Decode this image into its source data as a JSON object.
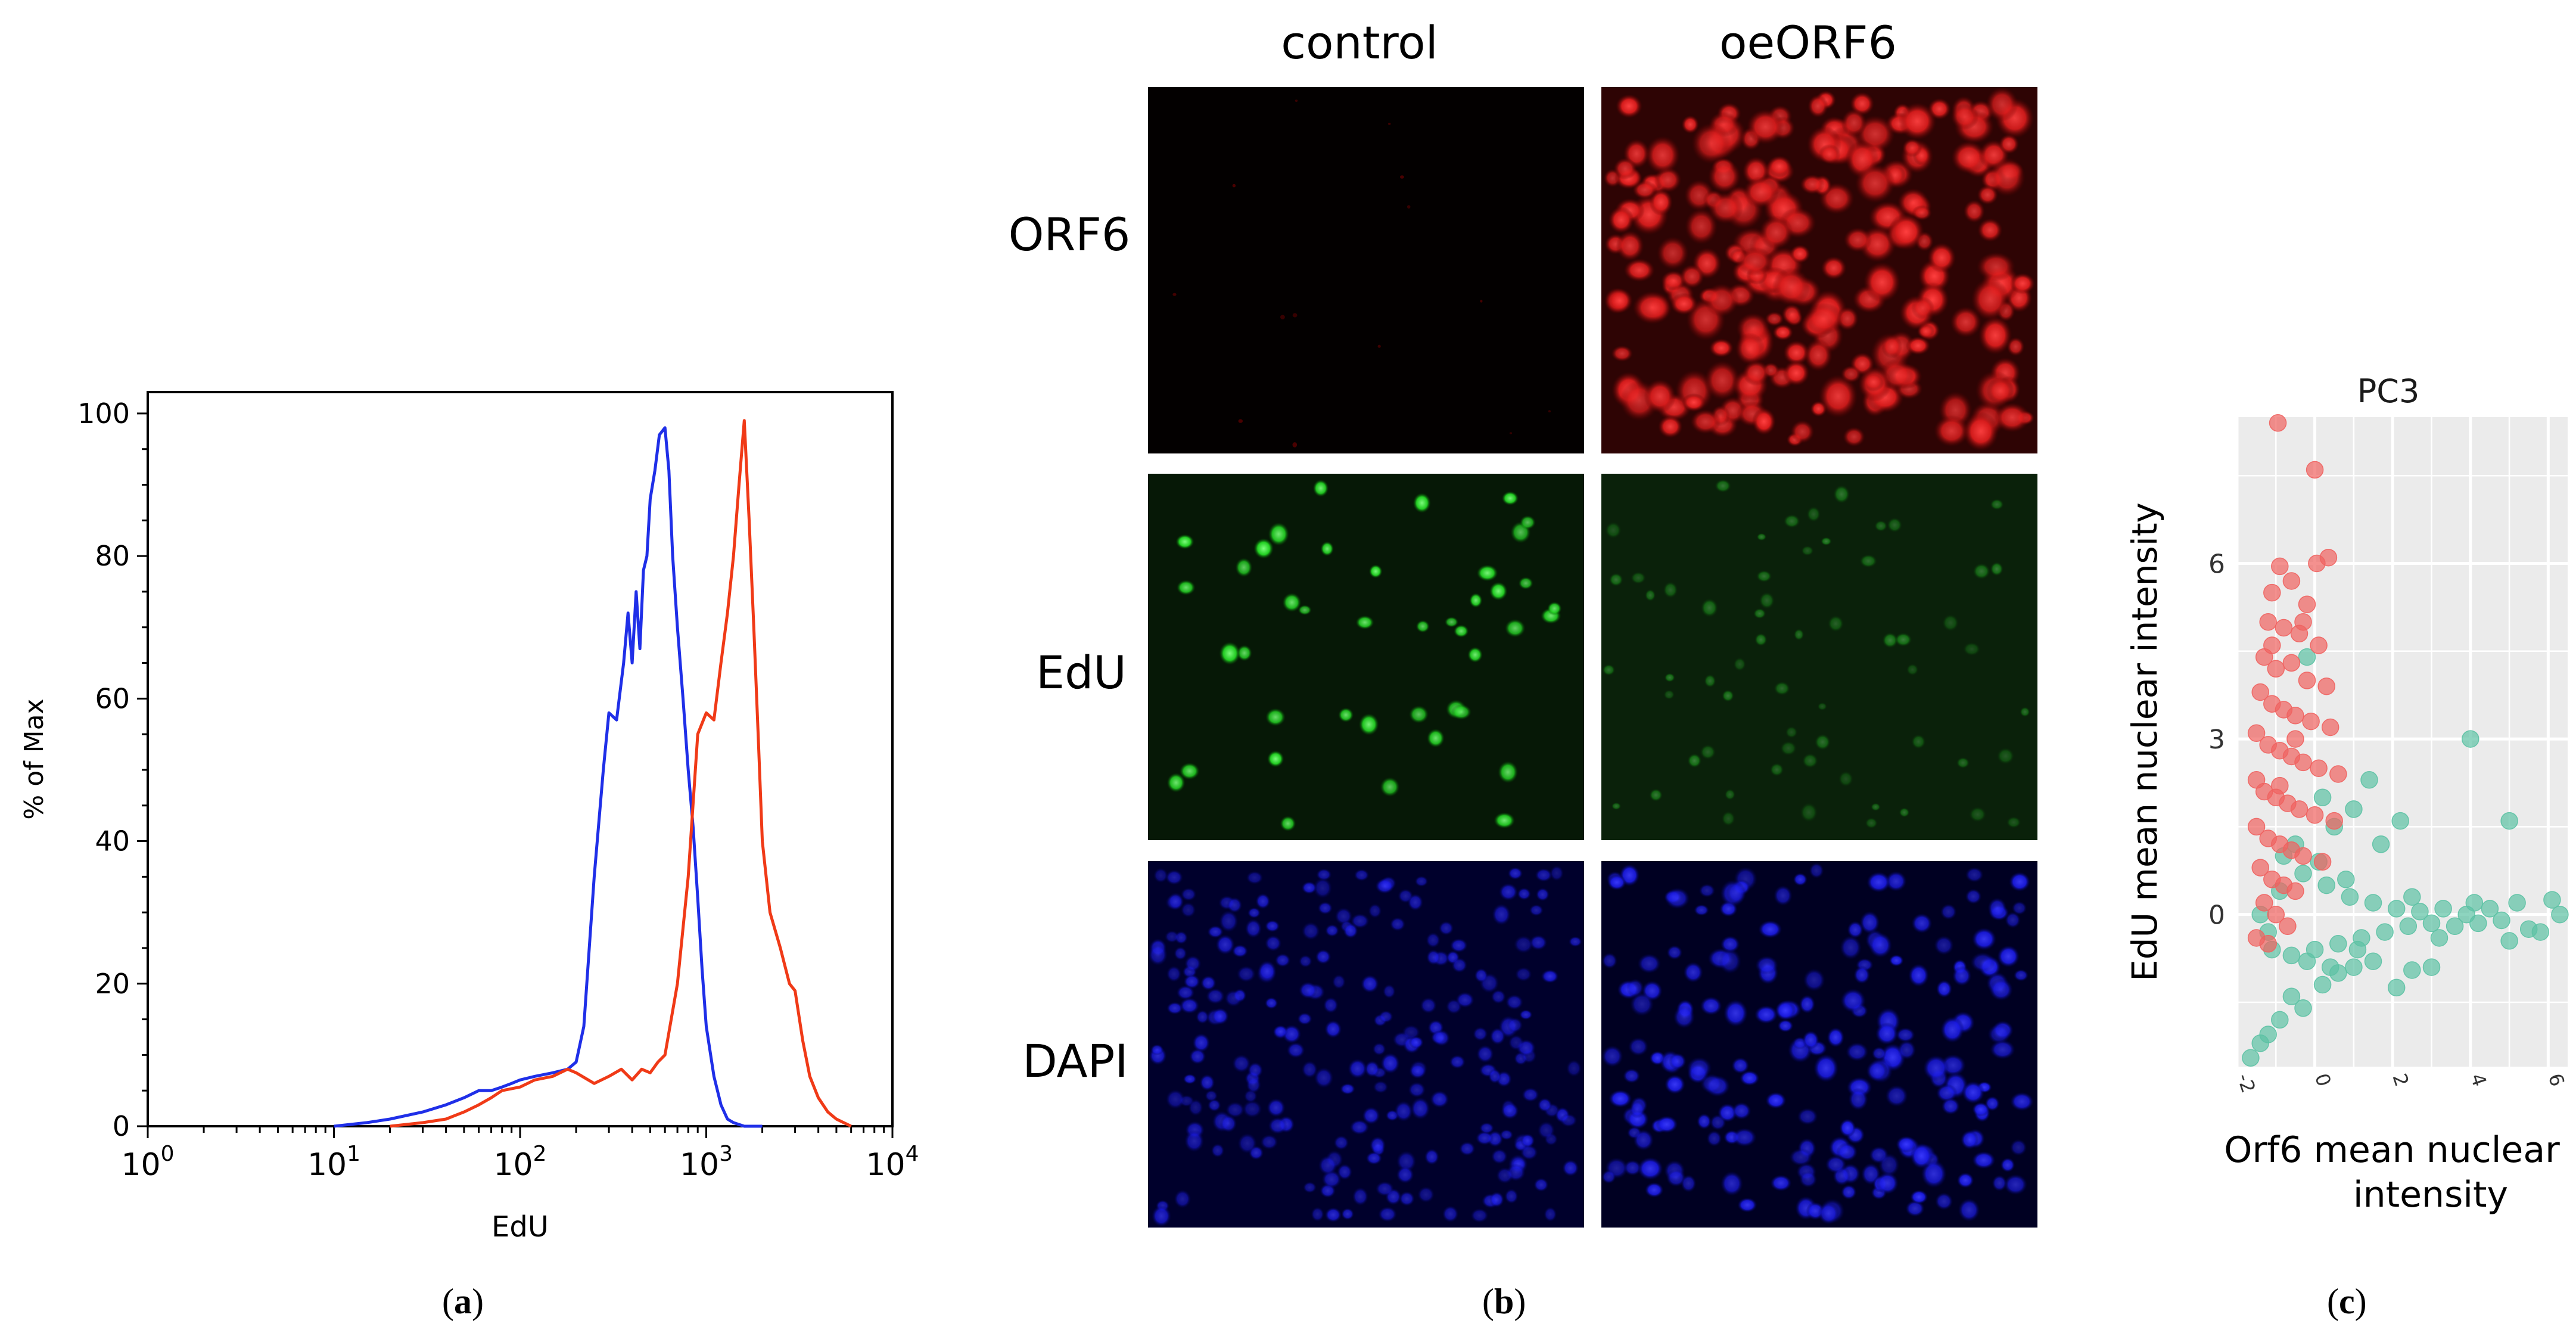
{
  "panel_a": {
    "label_letter": "a",
    "ylabel": "% of Max",
    "xlabel": "EdU",
    "y_ticks": [
      "0",
      "20",
      "40",
      "60",
      "80",
      "100"
    ],
    "x_ticks": [
      {
        "base": "10",
        "exp": "0"
      },
      {
        "base": "10",
        "exp": "1"
      },
      {
        "base": "10",
        "exp": "2"
      },
      {
        "base": "10",
        "exp": "3"
      },
      {
        "base": "10",
        "exp": "4"
      }
    ],
    "colors": {
      "series1": "#1f2fe8",
      "series2": "#f03a17"
    }
  },
  "panel_b": {
    "label_letter": "b",
    "columns": [
      "control",
      "oeORF6"
    ],
    "rows": [
      "ORF6",
      "EdU",
      "DAPI"
    ]
  },
  "panel_c": {
    "label_letter": "c",
    "title": "PC3",
    "xlabel_line1": "Orf6 mean nuclear",
    "xlabel_line2": "intensity",
    "ylabel": "EdU mean nuclear intensity",
    "y_ticks": [
      "0",
      "3",
      "6"
    ],
    "x_ticks": [
      "-2",
      "0",
      "2",
      "4",
      "6"
    ],
    "colors": {
      "groupA": "#f0625f",
      "groupB": "#5cc2a4"
    }
  },
  "chart_data": [
    {
      "type": "line",
      "panel": "a",
      "title": "",
      "xlabel": "EdU",
      "ylabel": "% of Max",
      "xscale": "log",
      "xlim": [
        1,
        10000
      ],
      "ylim": [
        0,
        103
      ],
      "grid": false,
      "series": [
        {
          "color": "#1f2fe8",
          "x": [
            10,
            15,
            20,
            30,
            40,
            50,
            60,
            70,
            80,
            90,
            100,
            120,
            150,
            180,
            200,
            220,
            250,
            280,
            300,
            330,
            360,
            380,
            400,
            420,
            440,
            460,
            480,
            500,
            530,
            560,
            600,
            630,
            660,
            700,
            750,
            800,
            850,
            900,
            950,
            1000,
            1100,
            1200,
            1300,
            1400,
            1600,
            2000
          ],
          "y": [
            0,
            0.5,
            1,
            2,
            3,
            4,
            5,
            5,
            5.5,
            6,
            6.5,
            7,
            7.5,
            8,
            9,
            14,
            35,
            50,
            58,
            57,
            65,
            72,
            65,
            75,
            67,
            78,
            80,
            88,
            92,
            97,
            98,
            92,
            80,
            70,
            60,
            50,
            42,
            32,
            22,
            14,
            7,
            3,
            1,
            0.5,
            0,
            0
          ]
        },
        {
          "color": "#f03a17",
          "x": [
            20,
            30,
            40,
            50,
            60,
            70,
            80,
            100,
            120,
            150,
            180,
            200,
            250,
            300,
            350,
            400,
            450,
            500,
            550,
            600,
            700,
            800,
            900,
            1000,
            1100,
            1200,
            1300,
            1400,
            1500,
            1600,
            1700,
            1800,
            1900,
            2000,
            2200,
            2500,
            2800,
            3000,
            3300,
            3600,
            4000,
            4500,
            5000,
            6000
          ],
          "y": [
            0,
            0.5,
            1,
            2,
            3,
            4,
            5,
            5.5,
            6.5,
            7,
            8,
            7.5,
            6,
            7,
            8,
            6.5,
            8,
            7.5,
            9,
            10,
            20,
            35,
            55,
            58,
            57,
            65,
            72,
            80,
            90,
            99,
            85,
            70,
            55,
            40,
            30,
            25,
            20,
            19,
            12,
            7,
            4,
            2,
            1,
            0
          ]
        }
      ]
    },
    {
      "type": "scatter",
      "panel": "c",
      "title": "PC3",
      "xlabel": "Orf6 mean nuclear intensity",
      "ylabel": "EdU mean nuclear intensity",
      "xlim": [
        -2,
        6.5
      ],
      "ylim": [
        -2.6,
        8.5
      ],
      "grid": true,
      "series": [
        {
          "color": "#f0625f",
          "points": [
            [
              -0.95,
              8.4
            ],
            [
              0,
              7.6
            ],
            [
              0.05,
              6
            ],
            [
              0.35,
              6.1
            ],
            [
              -0.9,
              5.95
            ],
            [
              -1.1,
              5.5
            ],
            [
              -0.6,
              5.7
            ],
            [
              -0.2,
              5.3
            ],
            [
              -1.2,
              5.0
            ],
            [
              -0.8,
              4.9
            ],
            [
              -0.4,
              4.8
            ],
            [
              0.1,
              4.6
            ],
            [
              -1.3,
              4.4
            ],
            [
              -1.0,
              4.2
            ],
            [
              -0.6,
              4.3
            ],
            [
              -0.2,
              4.0
            ],
            [
              0.3,
              3.9
            ],
            [
              -1.4,
              3.8
            ],
            [
              -1.1,
              3.6
            ],
            [
              -0.8,
              3.5
            ],
            [
              -0.5,
              3.4
            ],
            [
              -0.1,
              3.3
            ],
            [
              0.4,
              3.2
            ],
            [
              -1.5,
              3.1
            ],
            [
              -1.2,
              2.9
            ],
            [
              -0.9,
              2.8
            ],
            [
              -0.6,
              2.7
            ],
            [
              -0.3,
              2.6
            ],
            [
              0.1,
              2.5
            ],
            [
              0.6,
              2.4
            ],
            [
              -1.5,
              2.3
            ],
            [
              -1.3,
              2.1
            ],
            [
              -1.0,
              2.0
            ],
            [
              -0.7,
              1.9
            ],
            [
              -0.4,
              1.8
            ],
            [
              0.0,
              1.7
            ],
            [
              0.5,
              1.6
            ],
            [
              -1.5,
              1.5
            ],
            [
              -1.2,
              1.3
            ],
            [
              -0.9,
              1.2
            ],
            [
              -0.6,
              1.1
            ],
            [
              -0.3,
              1.0
            ],
            [
              0.2,
              0.9
            ],
            [
              -1.4,
              0.8
            ],
            [
              -1.1,
              0.6
            ],
            [
              -0.8,
              0.5
            ],
            [
              -0.5,
              0.4
            ],
            [
              -1.3,
              0.2
            ],
            [
              -1.0,
              0.0
            ],
            [
              -0.7,
              -0.2
            ],
            [
              -1.5,
              -0.4
            ],
            [
              -1.2,
              -0.5
            ],
            [
              -0.9,
              2.2
            ],
            [
              -0.5,
              3.0
            ],
            [
              -1.1,
              4.6
            ],
            [
              -0.3,
              5.0
            ]
          ]
        },
        {
          "color": "#5cc2a4",
          "points": [
            [
              -1.65,
              -2.45
            ],
            [
              -1.4,
              -2.2
            ],
            [
              -1.2,
              -2.05
            ],
            [
              -0.9,
              -1.8
            ],
            [
              -0.6,
              -1.4
            ],
            [
              -0.3,
              -1.6
            ],
            [
              0.2,
              -1.2
            ],
            [
              0.6,
              -1.0
            ],
            [
              1.0,
              -0.9
            ],
            [
              1.5,
              -0.8
            ],
            [
              2.1,
              -1.25
            ],
            [
              2.5,
              -0.95
            ],
            [
              3.0,
              -0.9
            ],
            [
              -0.2,
              4.4
            ],
            [
              0.2,
              2.0
            ],
            [
              0.5,
              1.5
            ],
            [
              1.0,
              1.8
            ],
            [
              1.4,
              2.3
            ],
            [
              1.7,
              1.2
            ],
            [
              2.2,
              1.6
            ],
            [
              4.0,
              3.0
            ],
            [
              5.0,
              1.6
            ],
            [
              6.1,
              0.25
            ],
            [
              5.8,
              -0.3
            ],
            [
              5.5,
              -0.25
            ],
            [
              5.2,
              0.2
            ],
            [
              4.8,
              -0.1
            ],
            [
              4.5,
              0.1
            ],
            [
              4.2,
              -0.15
            ],
            [
              3.9,
              0.0
            ],
            [
              3.6,
              -0.2
            ],
            [
              3.3,
              0.1
            ],
            [
              3.0,
              -0.15
            ],
            [
              2.7,
              0.05
            ],
            [
              2.4,
              -0.2
            ],
            [
              2.1,
              0.1
            ],
            [
              1.8,
              -0.3
            ],
            [
              1.5,
              0.2
            ],
            [
              1.2,
              -0.4
            ],
            [
              0.9,
              0.3
            ],
            [
              0.6,
              -0.5
            ],
            [
              0.3,
              0.5
            ],
            [
              0.0,
              -0.6
            ],
            [
              -0.3,
              0.7
            ],
            [
              -0.6,
              -0.7
            ],
            [
              -0.9,
              0.4
            ],
            [
              -1.2,
              -0.3
            ],
            [
              -1.4,
              0.0
            ],
            [
              -1.1,
              -0.6
            ],
            [
              -0.8,
              1.0
            ],
            [
              -0.5,
              1.2
            ],
            [
              -0.2,
              -0.8
            ],
            [
              0.1,
              0.9
            ],
            [
              0.4,
              -0.9
            ],
            [
              0.8,
              0.6
            ],
            [
              1.1,
              -0.6
            ],
            [
              2.5,
              0.3
            ],
            [
              3.2,
              -0.4
            ],
            [
              4.1,
              0.2
            ],
            [
              5.0,
              -0.45
            ],
            [
              6.3,
              0.0
            ]
          ]
        }
      ]
    }
  ]
}
